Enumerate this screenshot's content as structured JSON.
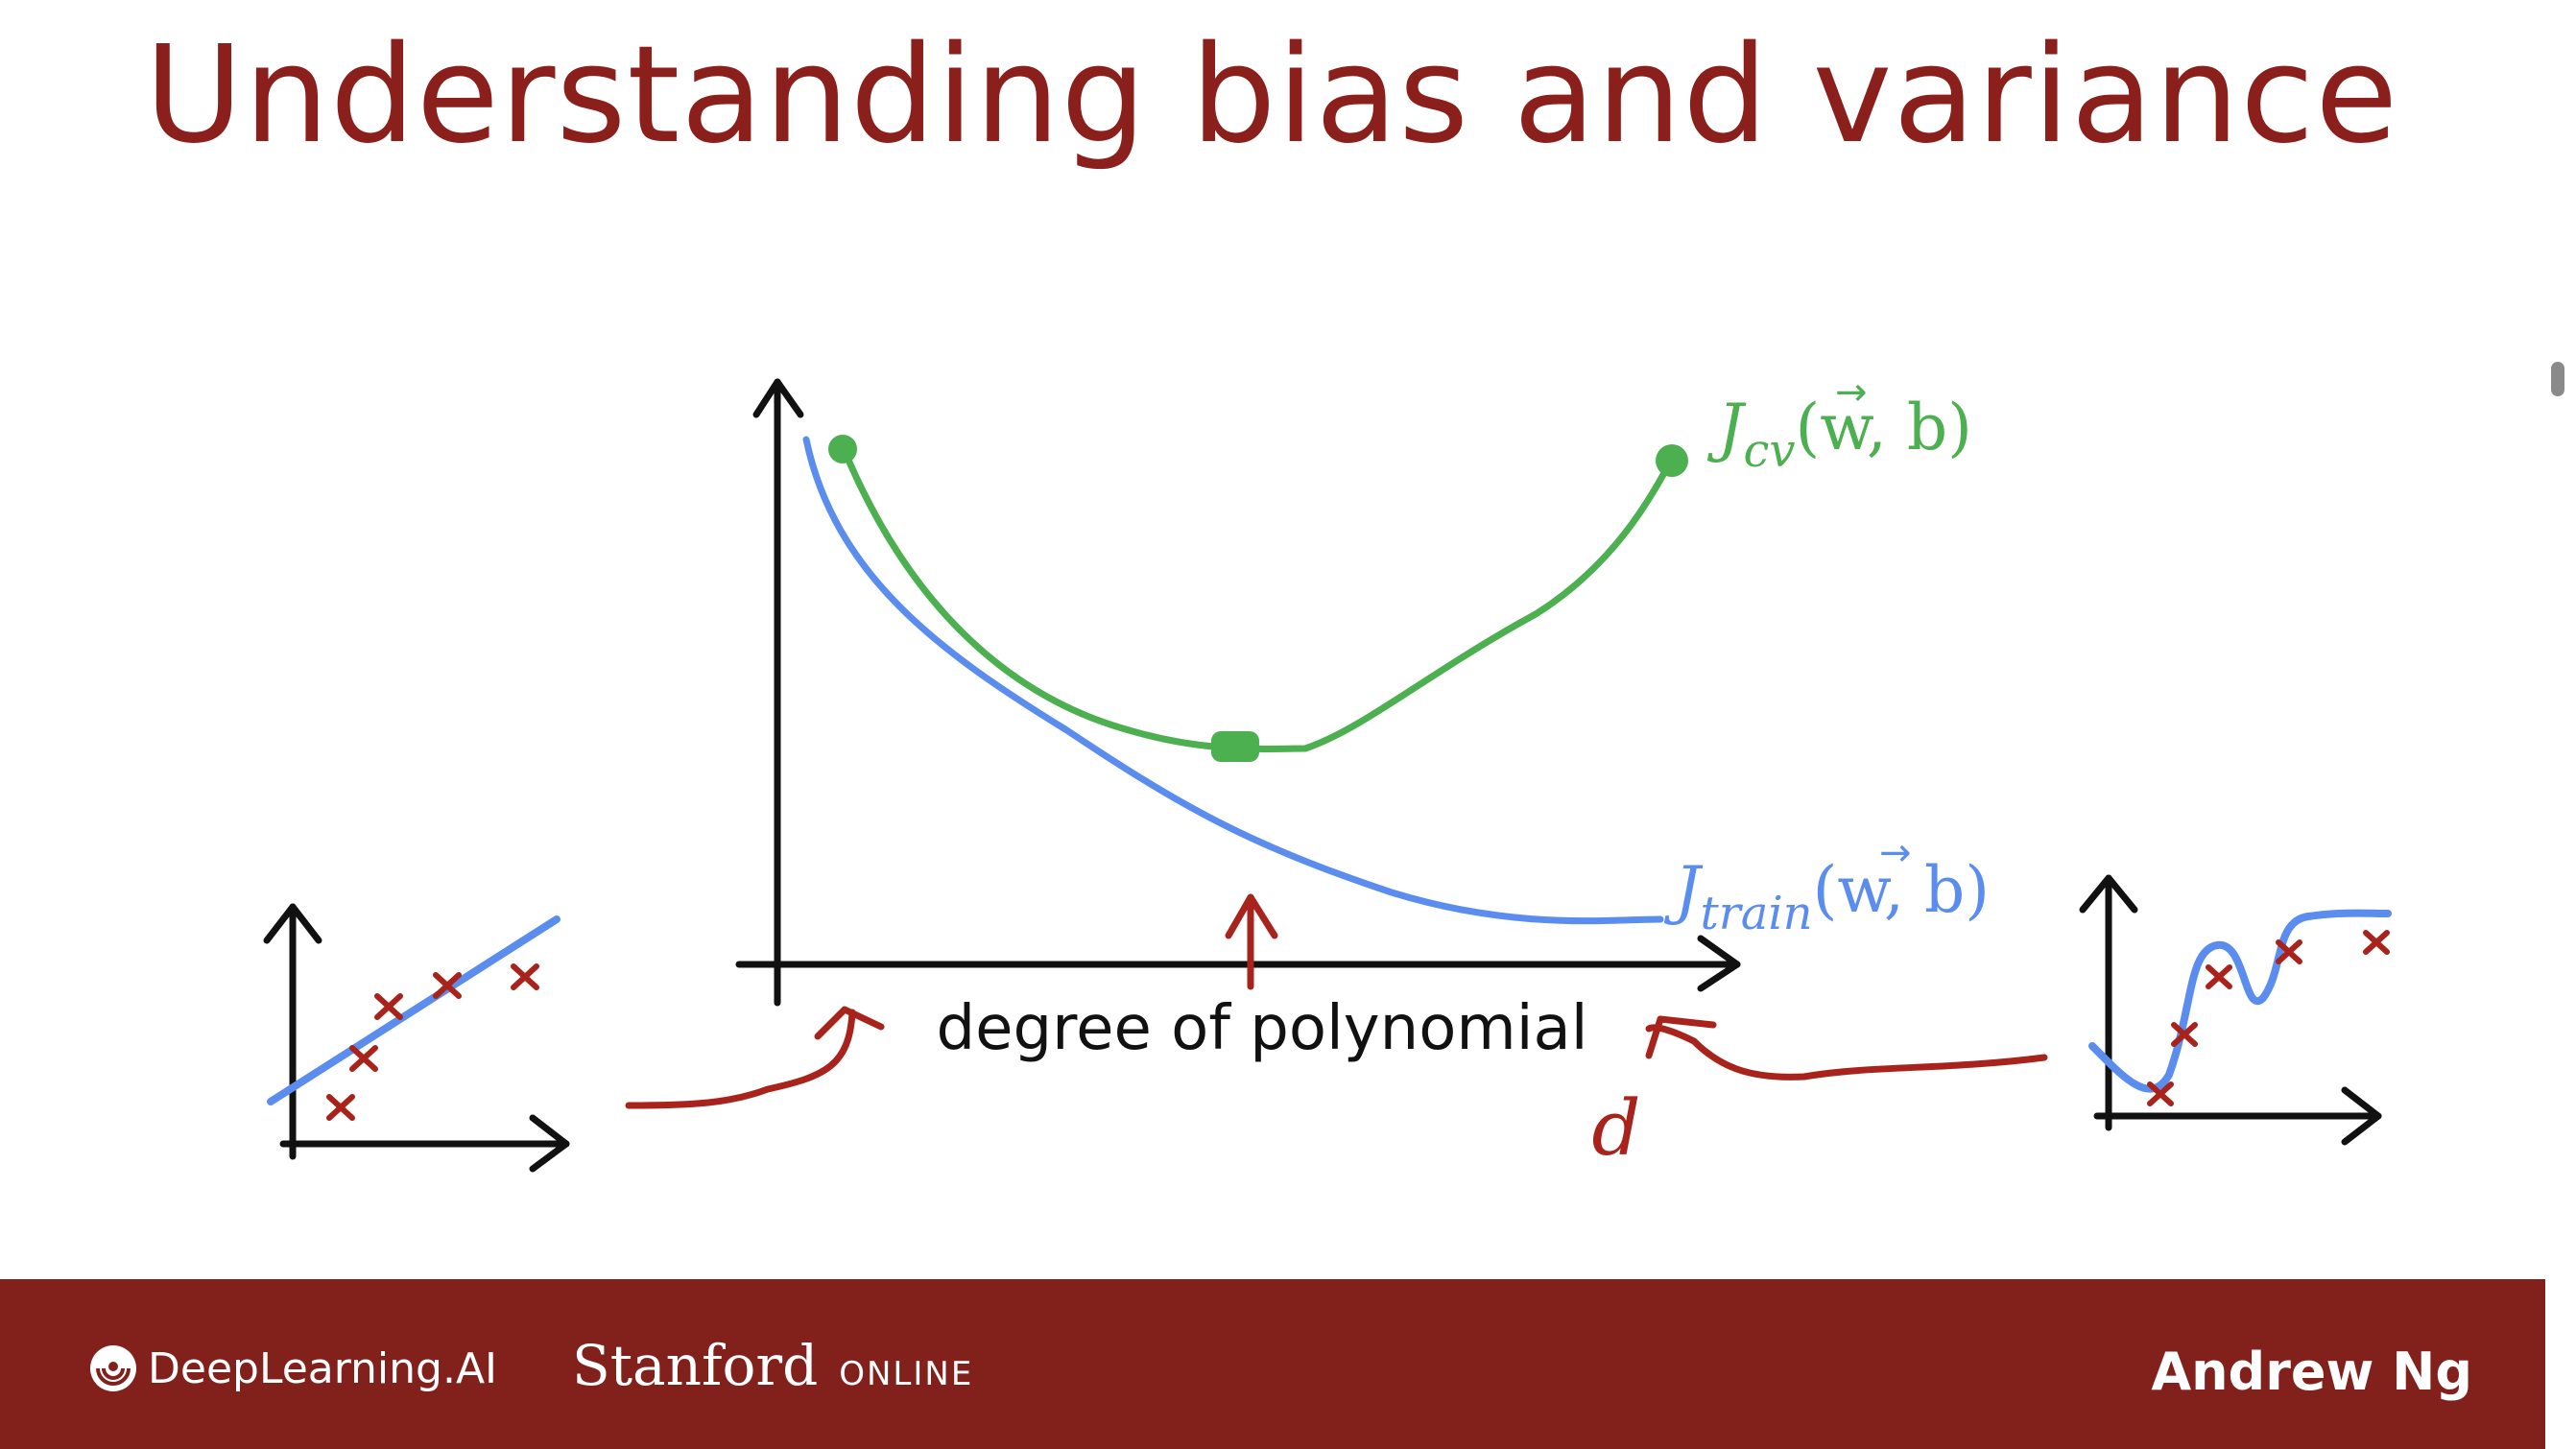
{
  "slide": {
    "title": "Understanding bias and variance"
  },
  "main_graph": {
    "x_axis_label": "degree of polynomial",
    "variable_label": "d",
    "cv_curve_label": {
      "main": "J",
      "subscript": "cv",
      "args": "(w, b)",
      "vector_arrow": "→"
    },
    "train_curve_label": {
      "main": "J",
      "subscript": "train",
      "args": "(w, b)",
      "vector_arrow": "→"
    }
  },
  "colors": {
    "title": "#8b1f1b",
    "cv_curve": "#4caf50",
    "train_curve": "#5b8def",
    "annotation": "#a8231c",
    "axis": "#111111",
    "footer": "#82211c"
  },
  "icons": {
    "cross_marker": "red-x-marker",
    "logo": "deeplearning-ai-logo"
  },
  "footer": {
    "brand": "DeepLearning.AI",
    "partner_name": "Stanford",
    "partner_suffix": "ONLINE",
    "author": "Andrew Ng"
  }
}
